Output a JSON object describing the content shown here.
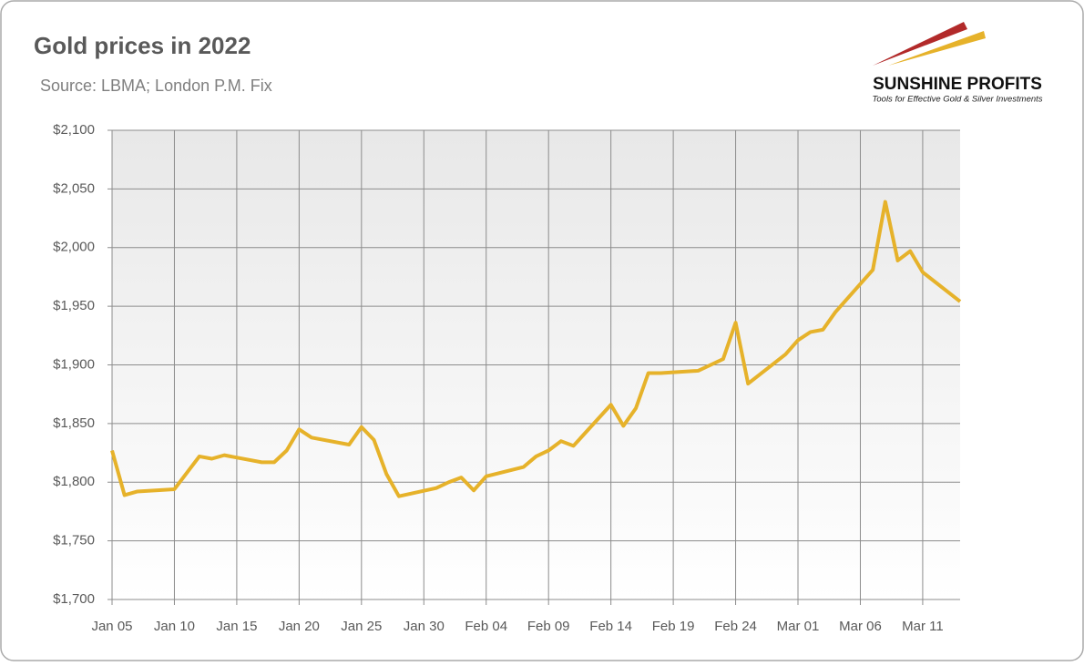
{
  "chart_data": {
    "type": "line",
    "title": "Gold prices in 2022",
    "subtitle": "Source: LBMA; London P.M. Fix",
    "logo": {
      "name": "SUNSHINE PROFITS",
      "tagline": "Tools for Effective Gold & Silver Investments"
    },
    "x": [
      "2022-01-05",
      "2022-01-06",
      "2022-01-07",
      "2022-01-10",
      "2022-01-11",
      "2022-01-12",
      "2022-01-13",
      "2022-01-14",
      "2022-01-17",
      "2022-01-18",
      "2022-01-19",
      "2022-01-20",
      "2022-01-21",
      "2022-01-24",
      "2022-01-25",
      "2022-01-26",
      "2022-01-27",
      "2022-01-28",
      "2022-01-31",
      "2022-02-01",
      "2022-02-02",
      "2022-02-03",
      "2022-02-04",
      "2022-02-07",
      "2022-02-08",
      "2022-02-09",
      "2022-02-10",
      "2022-02-11",
      "2022-02-14",
      "2022-02-15",
      "2022-02-16",
      "2022-02-17",
      "2022-02-18",
      "2022-02-21",
      "2022-02-22",
      "2022-02-23",
      "2022-02-24",
      "2022-02-25",
      "2022-02-28",
      "2022-03-01",
      "2022-03-02",
      "2022-03-03",
      "2022-03-04",
      "2022-03-07",
      "2022-03-08",
      "2022-03-09",
      "2022-03-10",
      "2022-03-11",
      "2022-03-14"
    ],
    "values": [
      1827,
      1789,
      1792,
      1794,
      1808,
      1822,
      1820,
      1823,
      1817,
      1817,
      1827,
      1845,
      1838,
      1832,
      1847,
      1836,
      1807,
      1788,
      1795,
      1800,
      1804,
      1793,
      1805,
      1813,
      1822,
      1827,
      1835,
      1831,
      1866,
      1848,
      1863,
      1893,
      1893,
      1895,
      1900,
      1905,
      1936,
      1884,
      1909,
      1921,
      1928,
      1930,
      1945,
      1981,
      2039,
      1989,
      1997,
      1979,
      1954
    ],
    "color": "#e6b22a",
    "xlim": [
      "2022-01-05",
      "2022-03-14"
    ],
    "xticks": [
      {
        "value": "2022-01-05",
        "label": "Jan 05"
      },
      {
        "value": "2022-01-10",
        "label": "Jan 10"
      },
      {
        "value": "2022-01-15",
        "label": "Jan 15"
      },
      {
        "value": "2022-01-20",
        "label": "Jan 20"
      },
      {
        "value": "2022-01-25",
        "label": "Jan 25"
      },
      {
        "value": "2022-01-30",
        "label": "Jan 30"
      },
      {
        "value": "2022-02-04",
        "label": "Feb 04"
      },
      {
        "value": "2022-02-09",
        "label": "Feb 09"
      },
      {
        "value": "2022-02-14",
        "label": "Feb 14"
      },
      {
        "value": "2022-02-19",
        "label": "Feb 19"
      },
      {
        "value": "2022-02-24",
        "label": "Feb 24"
      },
      {
        "value": "2022-03-01",
        "label": "Mar 01"
      },
      {
        "value": "2022-03-06",
        "label": "Mar 06"
      },
      {
        "value": "2022-03-11",
        "label": "Mar 11"
      }
    ],
    "ylim": [
      1700,
      2100
    ],
    "yticks": [
      {
        "value": 1700,
        "label": "$1,700"
      },
      {
        "value": 1750,
        "label": "$1,750"
      },
      {
        "value": 1800,
        "label": "$1,800"
      },
      {
        "value": 1850,
        "label": "$1,850"
      },
      {
        "value": 1900,
        "label": "$1,900"
      },
      {
        "value": 1950,
        "label": "$1,950"
      },
      {
        "value": 2000,
        "label": "$2,000"
      },
      {
        "value": 2050,
        "label": "$2,050"
      },
      {
        "value": 2100,
        "label": "$2,100"
      }
    ],
    "grid": true
  }
}
